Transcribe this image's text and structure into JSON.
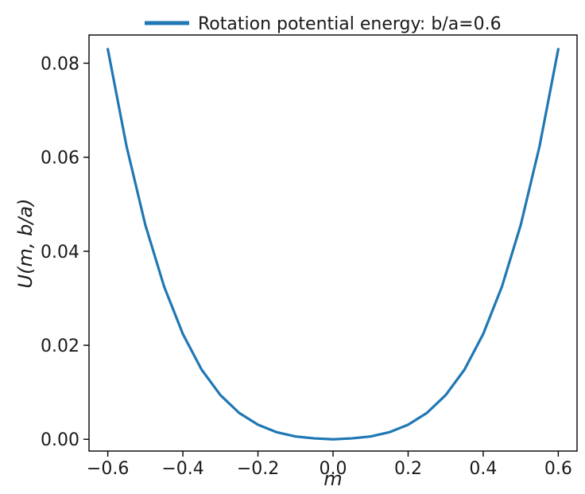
{
  "chart_data": {
    "type": "line",
    "title": "",
    "xlabel": "m",
    "ylabel": "U(m, b/a)",
    "xlim": [
      -0.65,
      0.65
    ],
    "ylim": [
      -0.0025,
      0.086
    ],
    "xticks": [
      -0.6,
      -0.4,
      -0.2,
      0.0,
      0.2,
      0.4,
      0.6
    ],
    "xtick_labels": [
      "−0.6",
      "−0.4",
      "−0.2",
      "0.0",
      "0.2",
      "0.4",
      "0.6"
    ],
    "yticks": [
      0.0,
      0.02,
      0.04,
      0.06,
      0.08
    ],
    "ytick_labels": [
      "0.00",
      "0.02",
      "0.04",
      "0.06",
      "0.08"
    ],
    "grid": false,
    "legend_position": "top",
    "series": [
      {
        "name": "Rotation potential energy: b/a=0.6",
        "color": "#1f77b4",
        "x": [
          -0.6,
          -0.55,
          -0.5,
          -0.45,
          -0.4,
          -0.35,
          -0.3,
          -0.25,
          -0.2,
          -0.15,
          -0.1,
          -0.05,
          0.0,
          0.05,
          0.1,
          0.15,
          0.2,
          0.25,
          0.3,
          0.35,
          0.4,
          0.45,
          0.5,
          0.55,
          0.6
        ],
        "y": [
          0.083,
          0.0623,
          0.0456,
          0.0325,
          0.0224,
          0.0148,
          0.0094,
          0.0056,
          0.0031,
          0.0015,
          0.0006,
          0.0002,
          0.0,
          0.0002,
          0.0006,
          0.0015,
          0.0031,
          0.0056,
          0.0094,
          0.0148,
          0.0224,
          0.0325,
          0.0456,
          0.0623,
          0.083
        ]
      }
    ]
  }
}
